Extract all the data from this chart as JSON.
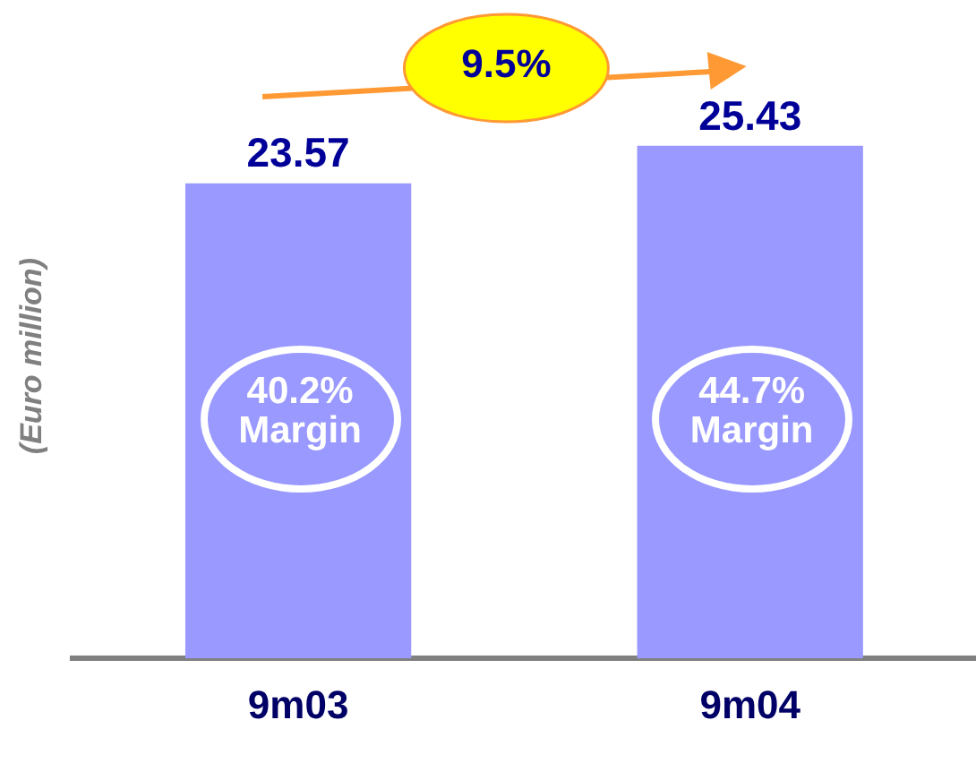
{
  "chart_data": {
    "type": "bar",
    "ylabel": "(Euro million)",
    "categories": [
      "9m03",
      "9m04"
    ],
    "values": [
      23.57,
      25.43
    ],
    "color": "#9999ff",
    "data_labels": true,
    "tick_labels": "x",
    "grid": false,
    "legend": false,
    "annotations": [
      "9.5%",
      "40.2%\nMargin",
      "44.7%\nMargin"
    ]
  }
}
